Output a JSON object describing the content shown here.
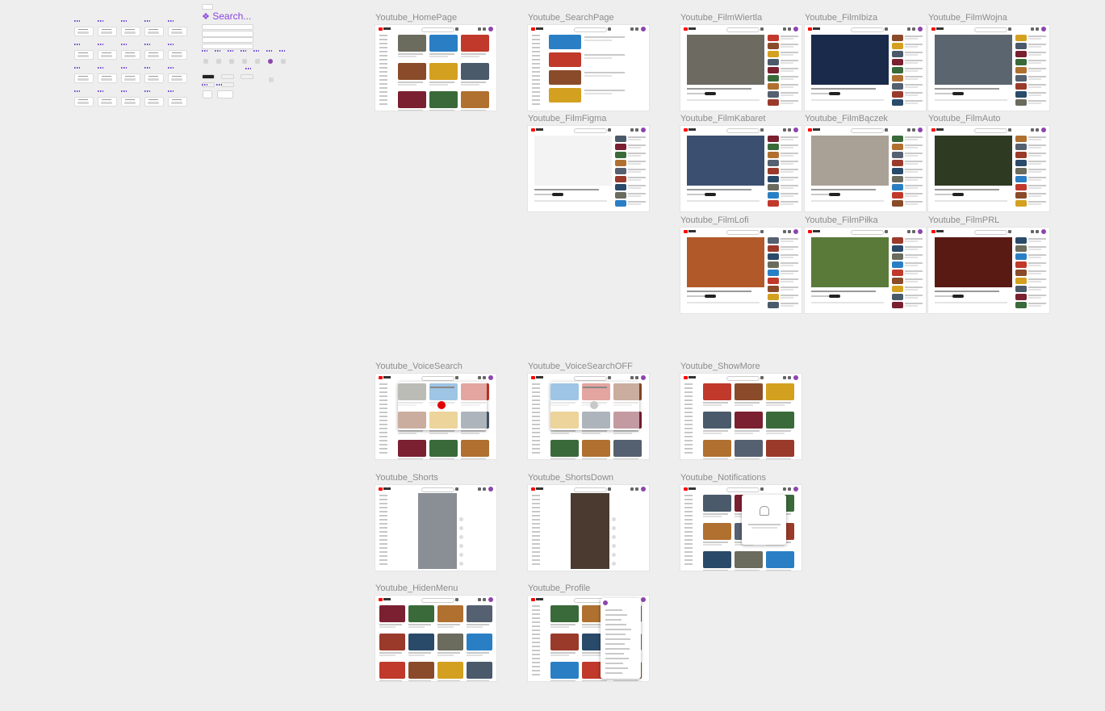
{
  "canvas": {
    "background": "#eeeeee",
    "components_title": "Search..."
  },
  "frames": [
    {
      "id": "home",
      "label": "Youtube_HomePage",
      "kind": "grid"
    },
    {
      "id": "search",
      "label": "Youtube_SearchPage",
      "kind": "search"
    },
    {
      "id": "wiertla",
      "label": "Youtube_FilmWiertla",
      "kind": "video",
      "player": "#6d6a62"
    },
    {
      "id": "ibiza",
      "label": "Youtube_FilmIbiza",
      "kind": "video",
      "player": "#1a2a4a"
    },
    {
      "id": "wojna",
      "label": "Youtube_FilmWojna",
      "kind": "video",
      "player": "#5a6570"
    },
    {
      "id": "figma",
      "label": "Youtube_FilmFigma",
      "kind": "video",
      "player": "#f3f3f3"
    },
    {
      "id": "kabaret",
      "label": "Youtube_FilmKabaret",
      "kind": "video",
      "player": "#3b4f70"
    },
    {
      "id": "baczek",
      "label": "Youtube_FilmBączek",
      "kind": "video",
      "player": "#a9a096"
    },
    {
      "id": "auto",
      "label": "Youtube_FilmAuto",
      "kind": "video",
      "player": "#2e3a22"
    },
    {
      "id": "lofi",
      "label": "Youtube_FilmLofi",
      "kind": "video",
      "player": "#b2592a"
    },
    {
      "id": "pilka",
      "label": "Youtube_FilmPiłka",
      "kind": "video",
      "player": "#5a7a3a"
    },
    {
      "id": "prl",
      "label": "Youtube_FilmPRL",
      "kind": "video",
      "player": "#5a1a14"
    },
    {
      "id": "voice",
      "label": "Youtube_VoiceSearch",
      "kind": "voice"
    },
    {
      "id": "voiceoff",
      "label": "Youtube_VoiceSearchOFF",
      "kind": "voice"
    },
    {
      "id": "showmore",
      "label": "Youtube_ShowMore",
      "kind": "grid"
    },
    {
      "id": "shorts",
      "label": "Youtube_Shorts",
      "kind": "shorts",
      "player": "#8a8f95"
    },
    {
      "id": "shortsdown",
      "label": "Youtube_ShortsDown",
      "kind": "shorts",
      "player": "#4a3a30"
    },
    {
      "id": "notifications",
      "label": "Youtube_Notifications",
      "kind": "notifications"
    },
    {
      "id": "hiddenmenu",
      "label": "Youtube_HidenMenu",
      "kind": "grid-wide"
    },
    {
      "id": "profile",
      "label": "Youtube_Profile",
      "kind": "profile"
    }
  ],
  "colors": {
    "youtube_red": "#ff0000",
    "avatar_purple": "#8e44ad",
    "component_accent": "#8a44e0",
    "frame_label": "#8c8c8c"
  },
  "icons": [
    "youtube-logo-icon",
    "search-icon",
    "microphone-icon",
    "bell-icon",
    "avatar-icon",
    "component-diamond-icon"
  ]
}
